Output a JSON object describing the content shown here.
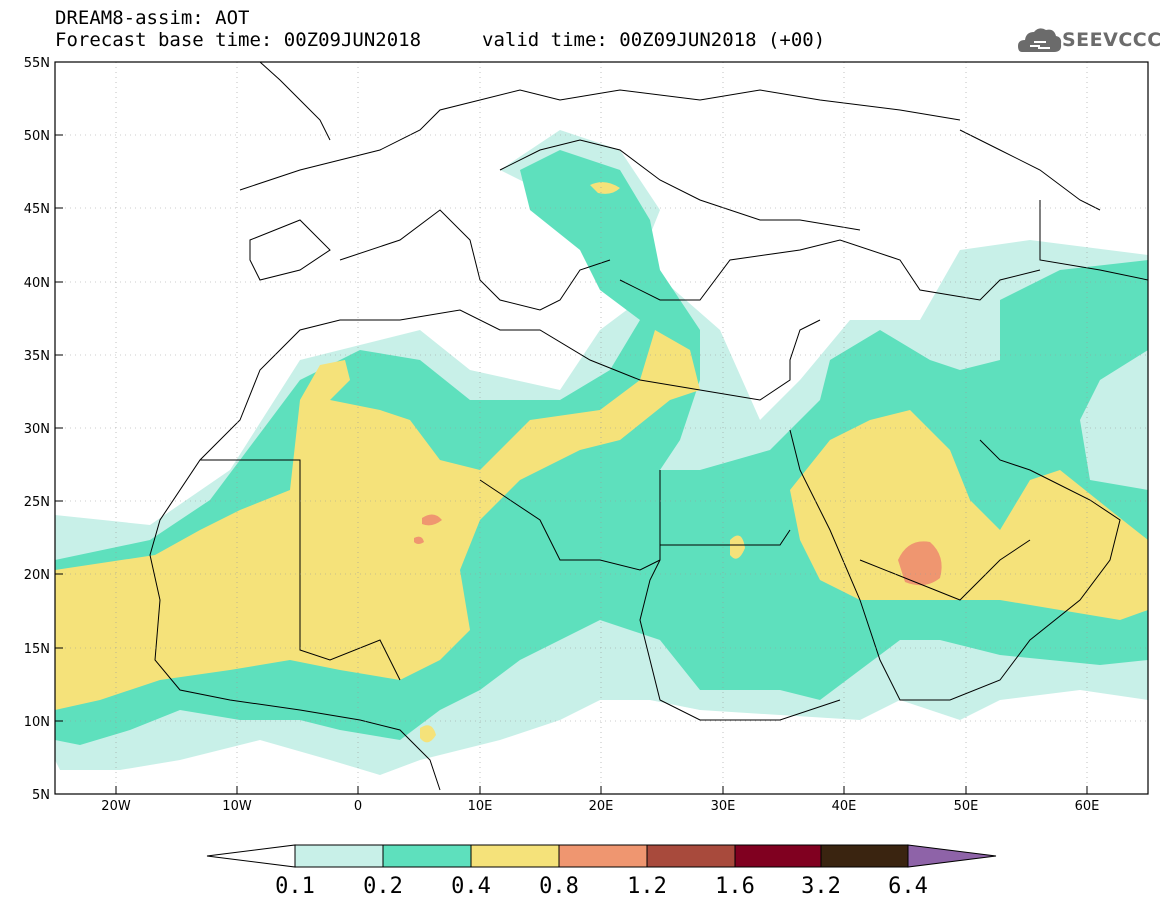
{
  "header": {
    "title": "DREAM8-assim: AOT",
    "base_time": "Forecast base time: 00Z09JUN2018",
    "valid_time": "valid time: 00Z09JUN2018 (+00)",
    "logo_text": "SEEVCCC"
  },
  "map": {
    "lat_labels": [
      "55N",
      "50N",
      "45N",
      "40N",
      "35N",
      "30N",
      "25N",
      "20N",
      "15N",
      "10N",
      "5N"
    ],
    "lon_labels": [
      "20W",
      "10W",
      "0",
      "10E",
      "20E",
      "30E",
      "40E",
      "50E",
      "60E"
    ],
    "lon_range": [
      -25,
      65
    ],
    "lat_range": [
      5,
      55
    ]
  },
  "colorbar": {
    "labels": [
      "0.1",
      "0.2",
      "0.4",
      "0.8",
      "1.2",
      "1.6",
      "3.2",
      "6.4"
    ],
    "colors": [
      "#c8f0e8",
      "#5ee0bd",
      "#f5e27a",
      "#ef9670",
      "#a84a3c",
      "#800020",
      "#3a2410",
      "#8e63a8"
    ],
    "under_color": "#ffffff"
  }
}
